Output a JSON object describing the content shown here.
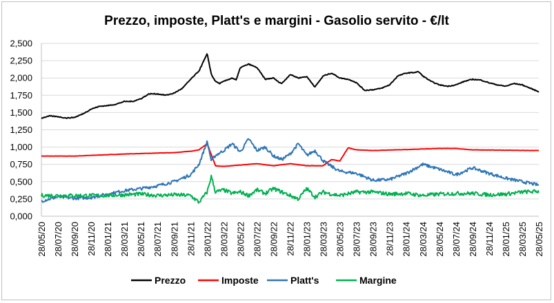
{
  "chart_data": {
    "type": "line",
    "title": "Prezzo, imposte, Platt's e margini - Gasolio servito - €/lt",
    "xlabel": "",
    "ylabel": "",
    "ylim": [
      0,
      2.5
    ],
    "y_ticks": [
      "0,000",
      "0,250",
      "0,500",
      "0,750",
      "1,000",
      "1,250",
      "1,500",
      "1,750",
      "2,000",
      "2,250",
      "2,500"
    ],
    "x_ticks": [
      "28/05/20",
      "28/07/20",
      "28/09/20",
      "28/11/20",
      "28/01/21",
      "28/03/21",
      "28/05/21",
      "28/07/21",
      "28/09/21",
      "28/11/21",
      "28/01/22",
      "28/03/22",
      "28/05/22",
      "28/07/22",
      "28/09/22",
      "28/11/22",
      "28/01/23",
      "28/03/23",
      "28/05/23",
      "28/07/23",
      "28/09/23",
      "28/11/23",
      "28/01/24",
      "28/03/24",
      "28/05/24",
      "28/07/24",
      "28/09/24",
      "28/11/24",
      "28/01/25",
      "28/03/25",
      "28/05/25"
    ],
    "grid": true,
    "legend_position": "bottom",
    "series": [
      {
        "name": "Prezzo",
        "color": "#000000",
        "x": [
          0,
          1,
          2,
          3,
          4,
          5,
          6,
          7,
          8,
          9,
          10,
          11,
          12,
          13,
          14,
          15,
          16,
          17,
          18,
          19,
          20,
          20.5,
          21,
          21.5,
          22,
          23,
          23.5,
          24,
          25,
          26,
          27,
          28,
          28.5,
          29,
          30,
          31,
          32,
          33,
          34,
          35,
          36,
          37,
          37.5,
          38,
          39,
          40,
          41,
          42,
          43,
          44,
          45,
          45.5,
          46,
          47,
          48,
          49,
          50,
          51,
          52,
          53,
          54,
          55,
          56,
          57,
          58,
          59,
          60
        ],
        "values": [
          1.42,
          1.45,
          1.44,
          1.42,
          1.43,
          1.48,
          1.55,
          1.59,
          1.6,
          1.62,
          1.66,
          1.66,
          1.7,
          1.77,
          1.77,
          1.75,
          1.78,
          1.85,
          1.98,
          2.1,
          2.35,
          2.05,
          1.95,
          1.92,
          1.95,
          2.0,
          1.97,
          2.15,
          2.2,
          2.15,
          1.98,
          2.0,
          1.95,
          1.92,
          2.05,
          2.0,
          2.02,
          1.87,
          2.03,
          2.07,
          2.0,
          1.98,
          1.96,
          1.93,
          1.82,
          1.83,
          1.85,
          1.9,
          2.03,
          2.07,
          2.08,
          2.09,
          2.03,
          1.95,
          1.9,
          1.88,
          1.9,
          1.95,
          1.98,
          1.97,
          1.93,
          1.9,
          1.88,
          1.92,
          1.9,
          1.85,
          1.8
        ]
      },
      {
        "name": "Imposte",
        "color": "#ff0000",
        "x": [
          0,
          4,
          10,
          16,
          18,
          19,
          20,
          21,
          22,
          26,
          28,
          30,
          32,
          34,
          35,
          36,
          37,
          38,
          40,
          48,
          50,
          52,
          60
        ],
        "values": [
          0.87,
          0.87,
          0.9,
          0.92,
          0.94,
          0.96,
          1.05,
          0.73,
          0.72,
          0.76,
          0.73,
          0.76,
          0.73,
          0.73,
          0.82,
          0.8,
          0.99,
          0.96,
          0.95,
          0.98,
          0.98,
          0.96,
          0.95
        ]
      },
      {
        "name": "Platt's",
        "color": "#2e75b6",
        "x": [
          0,
          2,
          4,
          6,
          8,
          10,
          12,
          14,
          16,
          18,
          19,
          20,
          20.5,
          21,
          22,
          23,
          24,
          25,
          26,
          27,
          28,
          29,
          30,
          31,
          32,
          33,
          34,
          35,
          36,
          38,
          40,
          42,
          44,
          46,
          48,
          50,
          52,
          54,
          56,
          58,
          60
        ],
        "values": [
          0.22,
          0.28,
          0.26,
          0.27,
          0.32,
          0.37,
          0.4,
          0.44,
          0.5,
          0.6,
          0.75,
          1.08,
          0.8,
          0.88,
          0.95,
          1.05,
          0.93,
          1.12,
          0.95,
          1.0,
          0.87,
          0.82,
          0.9,
          1.05,
          0.88,
          0.95,
          0.8,
          0.72,
          0.65,
          0.62,
          0.52,
          0.53,
          0.62,
          0.75,
          0.68,
          0.6,
          0.7,
          0.62,
          0.55,
          0.5,
          0.45
        ]
      },
      {
        "name": "Margine",
        "color": "#00b050",
        "x": [
          0,
          2,
          4,
          6,
          8,
          10,
          12,
          14,
          16,
          18,
          19,
          20,
          20.5,
          21,
          22,
          23,
          24,
          25,
          26,
          27,
          28,
          29,
          30,
          31,
          32,
          33,
          34,
          35,
          36,
          38,
          40,
          42,
          44,
          46,
          48,
          50,
          52,
          54,
          56,
          58,
          60
        ],
        "values": [
          0.3,
          0.3,
          0.3,
          0.3,
          0.3,
          0.31,
          0.32,
          0.3,
          0.31,
          0.3,
          0.2,
          0.35,
          0.58,
          0.35,
          0.38,
          0.33,
          0.35,
          0.3,
          0.38,
          0.33,
          0.4,
          0.35,
          0.3,
          0.25,
          0.4,
          0.28,
          0.35,
          0.32,
          0.3,
          0.35,
          0.35,
          0.32,
          0.33,
          0.3,
          0.32,
          0.33,
          0.33,
          0.31,
          0.32,
          0.35,
          0.36
        ]
      }
    ]
  }
}
